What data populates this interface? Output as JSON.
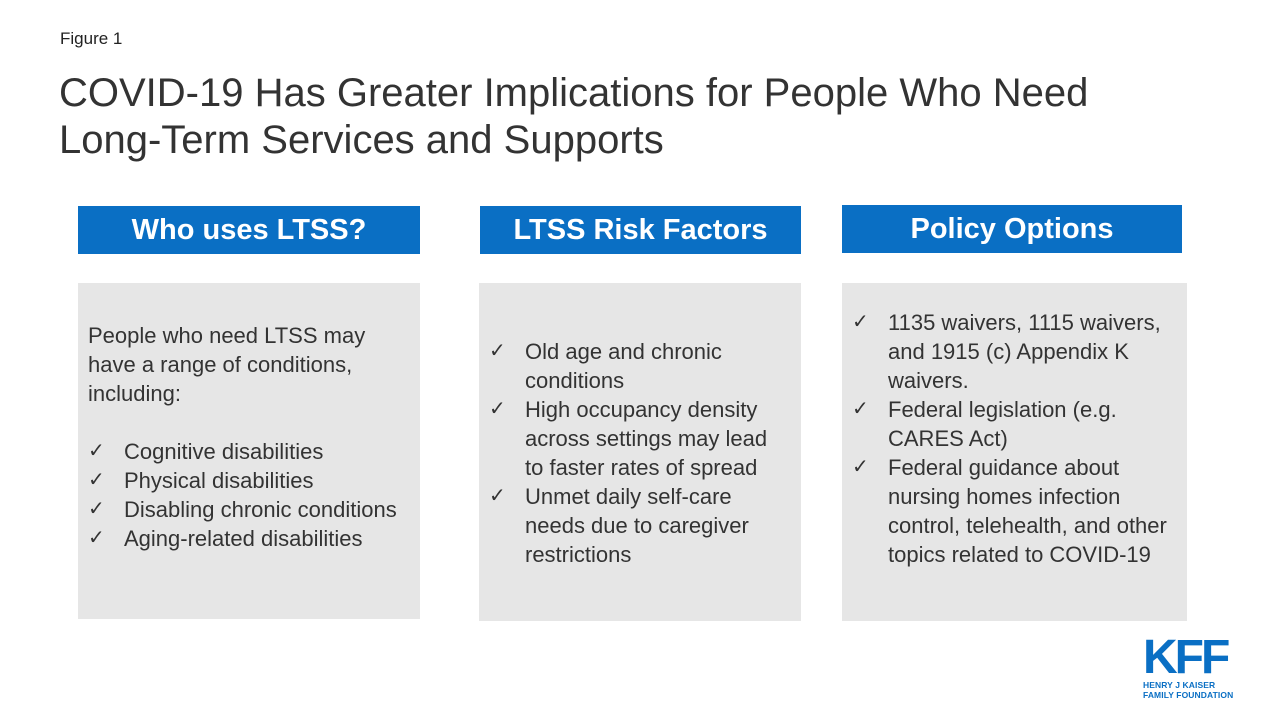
{
  "figure_label": "Figure 1",
  "title_line1": "COVID-19 Has Greater Implications for People Who Need",
  "title_line2": "Long-Term Services and Supports",
  "columns": [
    {
      "header": "Who uses LTSS?",
      "intro": "People who need LTSS may have a range of conditions, including:",
      "items": [
        "Cognitive disabilities",
        "Physical disabilities",
        "Disabling chronic conditions",
        "Aging-related disabilities"
      ]
    },
    {
      "header": "LTSS Risk Factors",
      "items": [
        "Old age and chronic conditions",
        "High occupancy density across settings may lead to faster rates of spread",
        "Unmet daily self-care needs due to caregiver restrictions"
      ]
    },
    {
      "header": "Policy Options",
      "items": [
        "1135 waivers, 1115 waivers, and 1915 (c) Appendix K waivers.",
        "Federal legislation (e.g. CARES Act)",
        "Federal guidance about nursing homes infection control, telehealth, and other topics related to COVID-19"
      ]
    }
  ],
  "check_glyph": "✓",
  "logo": {
    "mark": "KFF",
    "line1": "HENRY J KAISER",
    "line2": "FAMILY FOUNDATION"
  },
  "colors": {
    "accent": "#0a6fc4",
    "panel": "#e6e6e6",
    "text": "#333333"
  }
}
